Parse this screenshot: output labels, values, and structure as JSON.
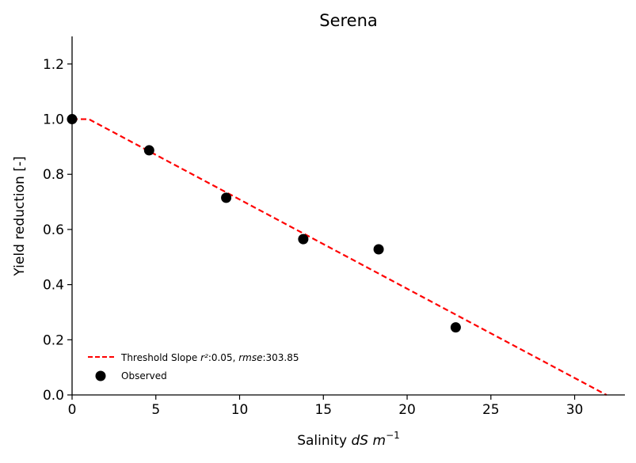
{
  "chart_data": {
    "type": "scatter",
    "title": "Serena",
    "xlabel_prefix": "Salinity ",
    "xlabel_italic": "dS m",
    "xlabel_sup": "−1",
    "ylabel": "Yield reduction [-]",
    "xlim": [
      0,
      33
    ],
    "ylim": [
      0,
      1.3
    ],
    "xticks": [
      0,
      5,
      10,
      15,
      20,
      25,
      30
    ],
    "yticks": [
      0.0,
      0.2,
      0.4,
      0.6,
      0.8,
      1.0,
      1.2
    ],
    "xtick_labels": [
      "0",
      "5",
      "10",
      "15",
      "20",
      "25",
      "30"
    ],
    "ytick_labels": [
      "0.0",
      "0.2",
      "0.4",
      "0.6",
      "0.8",
      "1.0",
      "1.2"
    ],
    "grid": false,
    "legend_position": "lower-left",
    "series": [
      {
        "name": "Threshold Slope",
        "kind": "line",
        "style": "dashed",
        "color": "#ff0000",
        "x": [
          0,
          1.0,
          31.9
        ],
        "y": [
          1.0,
          1.0,
          0.0
        ]
      },
      {
        "name": "Observed",
        "kind": "scatter",
        "color": "#000000",
        "x": [
          0,
          4.6,
          9.2,
          13.8,
          18.3,
          22.9
        ],
        "y": [
          1.0,
          0.887,
          0.715,
          0.565,
          0.528,
          0.245
        ]
      }
    ],
    "legend": {
      "threshold_prefix": "Threshold Slope ",
      "r2_label": "r²",
      "r2_value": ":0.05, ",
      "rmse_label": "rmse",
      "rmse_value": ":303.85",
      "observed_label": "Observed"
    }
  }
}
